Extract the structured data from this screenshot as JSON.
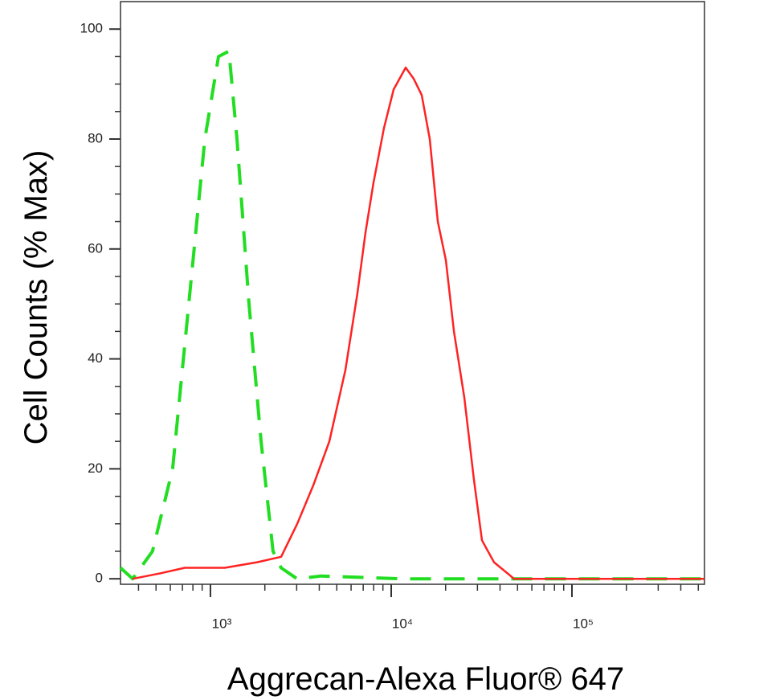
{
  "chart_data": {
    "type": "line",
    "x_label": "Aggrecan-Alexa Fluor® 647",
    "y_label": "Cell Counts (% Max)",
    "xscale": "log",
    "xlim": [
      318,
      541000
    ],
    "ylim": [
      -1,
      105
    ],
    "xticks": [
      {
        "value": 1000,
        "label": "10³"
      },
      {
        "value": 10000,
        "label": "10⁴"
      },
      {
        "value": 100000,
        "label": "10⁵"
      }
    ],
    "xminor_ticks": [
      400,
      500,
      600,
      700,
      800,
      900,
      2000,
      3000,
      4000,
      5000,
      6000,
      7000,
      8000,
      9000,
      20000,
      30000,
      40000,
      50000,
      60000,
      70000,
      80000,
      90000,
      200000,
      300000,
      400000,
      500000
    ],
    "yticks": [
      0,
      20,
      40,
      60,
      80,
      100
    ],
    "yminor_ticks": [
      5,
      10,
      15,
      25,
      30,
      35,
      45,
      50,
      55,
      65,
      70,
      75,
      85,
      90,
      95
    ],
    "series": [
      {
        "color": "#22dd22",
        "dash": true,
        "x": [
          318,
          371,
          478,
          618,
          759,
          931,
          1108,
          1266,
          1402,
          1634,
          1906,
          2221,
          2460,
          3019,
          4102,
          11400,
          31770,
          541000
        ],
        "values": [
          2,
          0,
          5,
          20,
          50,
          80,
          95,
          96,
          80,
          50,
          25,
          5,
          2,
          0,
          0.5,
          0,
          0,
          0
        ]
      },
      {
        "color": "#ff2222",
        "dash": false,
        "x": [
          371,
          530,
          721,
          1202,
          1811,
          2461,
          3020,
          3707,
          4549,
          5582,
          6504,
          7211,
          7980,
          9120,
          10310,
          12020,
          13310,
          14760,
          16340,
          18110,
          20060,
          22230,
          25370,
          28700,
          31770,
          37050,
          47860,
          541000
        ],
        "values": [
          0,
          1,
          2,
          2,
          3,
          4,
          10,
          17,
          25,
          38,
          52,
          63,
          72,
          82,
          89,
          93,
          91,
          88,
          80,
          65,
          58,
          45,
          33,
          18,
          7,
          3,
          0,
          0
        ]
      }
    ]
  }
}
